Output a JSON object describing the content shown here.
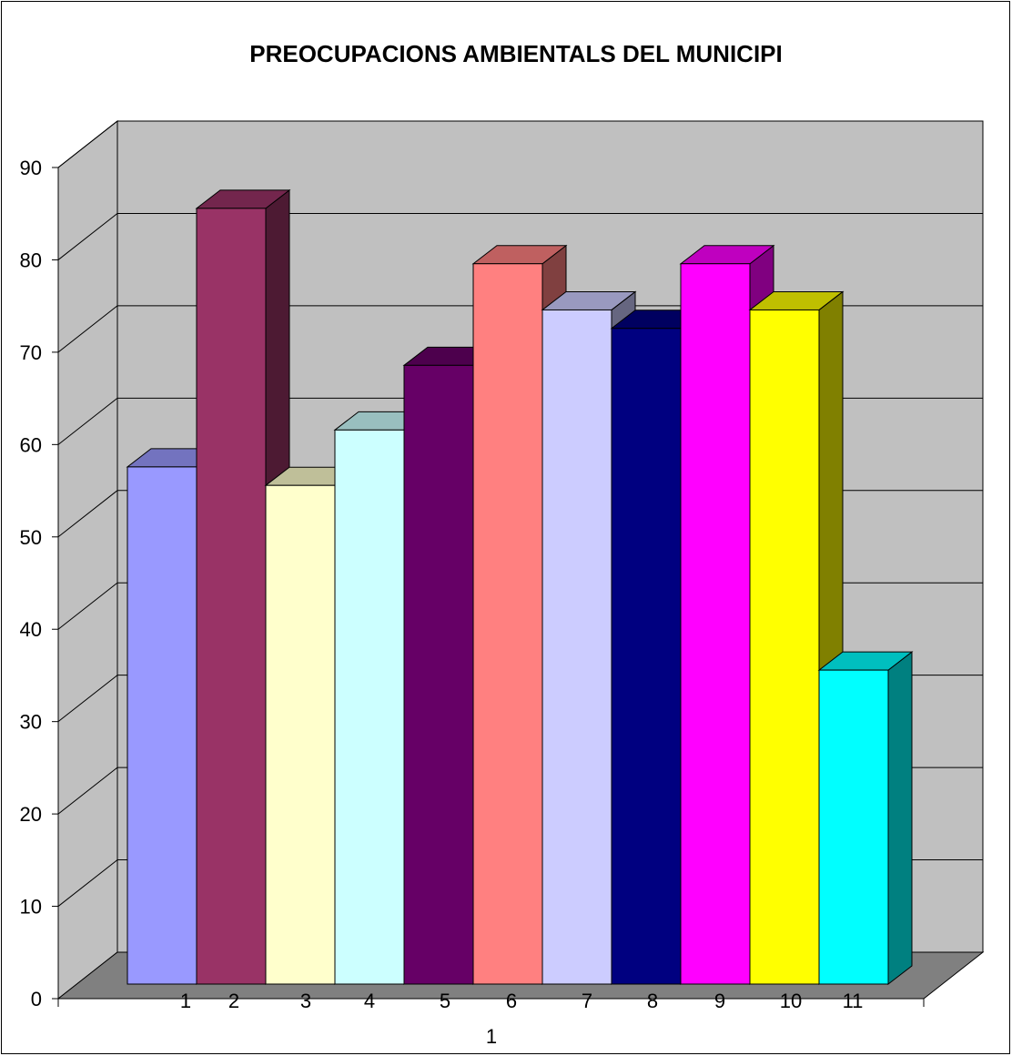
{
  "chart_data": {
    "type": "bar",
    "title": "PREOCUPACIONS AMBIENTALS DEL MUNICIPI",
    "xlabel": "1",
    "ylabel": "",
    "categories": [
      "1",
      "2",
      "3",
      "4",
      "5",
      "6",
      "7",
      "8",
      "9",
      "10",
      "11"
    ],
    "series": [
      {
        "values": [
          56,
          84,
          54,
          60,
          67,
          78,
          73,
          71,
          78,
          73,
          34
        ]
      }
    ],
    "ylim": [
      0,
      90
    ],
    "yticks": [
      0,
      10,
      20,
      30,
      40,
      50,
      60,
      70,
      80,
      90
    ],
    "grid": true,
    "three_d": true,
    "colors": [
      "#9999ff",
      "#993366",
      "#ffffcc",
      "#ccffff",
      "#660066",
      "#ff8080",
      "#ccccff",
      "#000080",
      "#ff00ff",
      "#ffff00",
      "#00ffff"
    ],
    "wall_color": "#c0c0c0",
    "floor_color": "#808080"
  }
}
